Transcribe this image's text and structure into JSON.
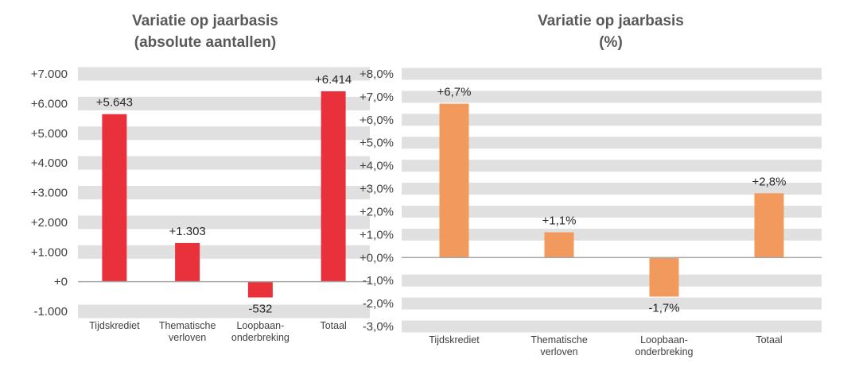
{
  "chart_data": [
    {
      "type": "bar",
      "title": [
        "Variatie op jaarbasis",
        "(absolute aantallen)"
      ],
      "categories": [
        [
          "Tijdskrediet"
        ],
        [
          "Thematische",
          "verloven"
        ],
        [
          "Loopbaan-",
          "onderbreking"
        ],
        [
          "Totaal"
        ]
      ],
      "values": [
        5643,
        1303,
        -532,
        6414
      ],
      "data_labels": [
        "+5.643",
        "+1.303",
        "-532",
        "+6.414"
      ],
      "ylim": [
        -1000,
        7000
      ],
      "yticks": [
        7000,
        6000,
        5000,
        4000,
        3000,
        2000,
        1000,
        0,
        -1000
      ],
      "ytick_labels": [
        "+7.000",
        "+6.000",
        "+5.000",
        "+4.000",
        "+3.000",
        "+2.000",
        "+1.000",
        "+0",
        "-1.000"
      ],
      "color": "#E8313A",
      "grid": "striped bands"
    },
    {
      "type": "bar",
      "title": [
        "Variatie op jaarbasis",
        "(%)"
      ],
      "categories": [
        [
          "Tijdskrediet"
        ],
        [
          "Thematische",
          "verloven"
        ],
        [
          "Loopbaan-",
          "onderbreking"
        ],
        [
          "Totaal"
        ]
      ],
      "values": [
        6.7,
        1.1,
        -1.7,
        2.8
      ],
      "data_labels": [
        "+6,7%",
        "+1,1%",
        "-1,7%",
        "+2,8%"
      ],
      "ylim": [
        -3,
        8
      ],
      "yticks": [
        8,
        7,
        6,
        5,
        4,
        3,
        2,
        1,
        0,
        -1,
        -2,
        -3
      ],
      "ytick_labels": [
        "+8,0%",
        "+7,0%",
        "+6,0%",
        "+5,0%",
        "+4,0%",
        "+3,0%",
        "+2,0%",
        "+1,0%",
        "+0,0%",
        "-1,0%",
        "-2,0%",
        "-3,0%"
      ],
      "color": "#F2995E",
      "grid": "striped bands"
    }
  ]
}
